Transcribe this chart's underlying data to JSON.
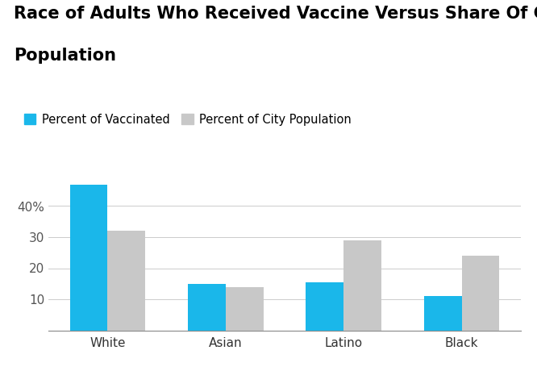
{
  "title_line1": "Race of Adults Who Received Vaccine Versus Share Of City",
  "title_line2": "Population",
  "categories": [
    "White",
    "Asian",
    "Latino",
    "Black"
  ],
  "vaccinated": [
    47,
    15,
    15.5,
    11
  ],
  "city_population": [
    32,
    14,
    29,
    24
  ],
  "vaccinated_color": "#1ab7ea",
  "city_pop_color": "#c8c8c8",
  "legend_labels": [
    "Percent of Vaccinated",
    "Percent of City Population"
  ],
  "ylim": [
    0,
    52
  ],
  "yticks": [
    10,
    20,
    30,
    40
  ],
  "ytick_labels": [
    "10",
    "20",
    "30",
    "40%"
  ],
  "background_color": "#ffffff",
  "bar_width": 0.32,
  "title_fontsize": 15,
  "tick_fontsize": 11,
  "legend_fontsize": 10.5
}
